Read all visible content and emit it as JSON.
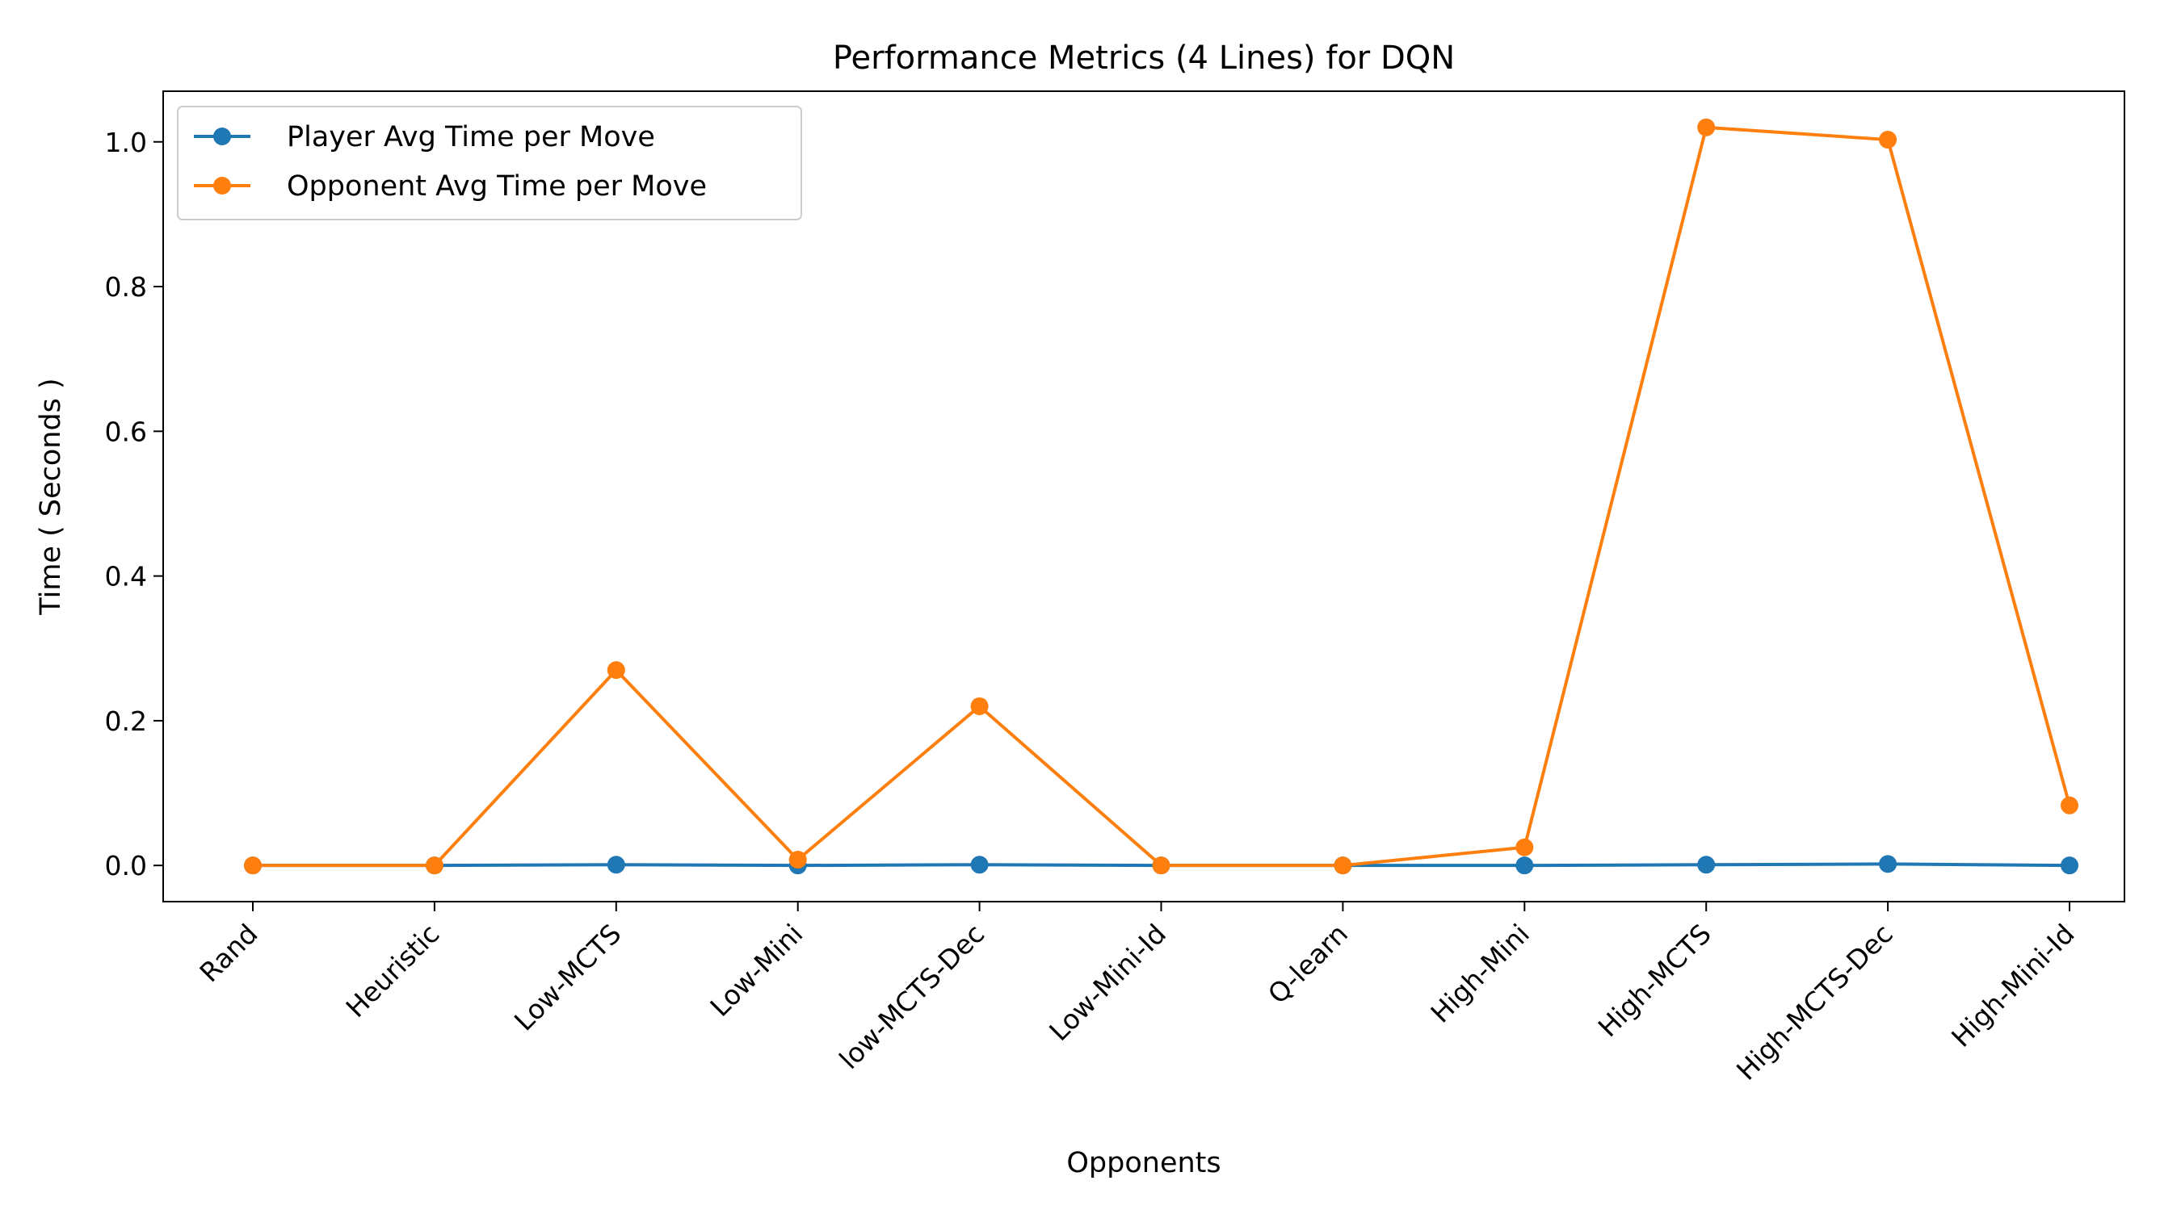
{
  "chart_data": {
    "type": "line",
    "title": "Performance Metrics (4 Lines) for DQN",
    "xlabel": "Opponents",
    "ylabel": "Time ( Seconds )",
    "categories": [
      "Rand",
      "Heuristic",
      "Low-MCTS",
      "Low-Mini",
      "low-MCTS-Dec",
      "Low-Mini-Id",
      "Q-learn",
      "High-Mini",
      "High-MCTS",
      "High-MCTS-Dec",
      "High-Mini-Id"
    ],
    "ylim": [
      -0.05,
      1.07
    ],
    "yticks": [
      0.0,
      0.2,
      0.4,
      0.6,
      0.8,
      1.0
    ],
    "ytick_labels": [
      "0.0",
      "0.2",
      "0.4",
      "0.6",
      "0.8",
      "1.0"
    ],
    "grid": false,
    "legend_position": "upper-left",
    "series": [
      {
        "name": "Player Avg Time per Move",
        "color": "#1f77b4",
        "marker": "circle",
        "values": [
          0.0,
          0.0,
          0.001,
          0.0,
          0.001,
          0.0,
          0.0,
          0.0,
          0.001,
          0.002,
          0.0
        ]
      },
      {
        "name": "Opponent Avg Time per Move",
        "color": "#ff7f0e",
        "marker": "circle",
        "values": [
          0.0,
          0.0,
          0.27,
          0.008,
          0.22,
          0.0,
          0.0,
          0.025,
          1.02,
          1.003,
          0.083
        ]
      }
    ]
  }
}
